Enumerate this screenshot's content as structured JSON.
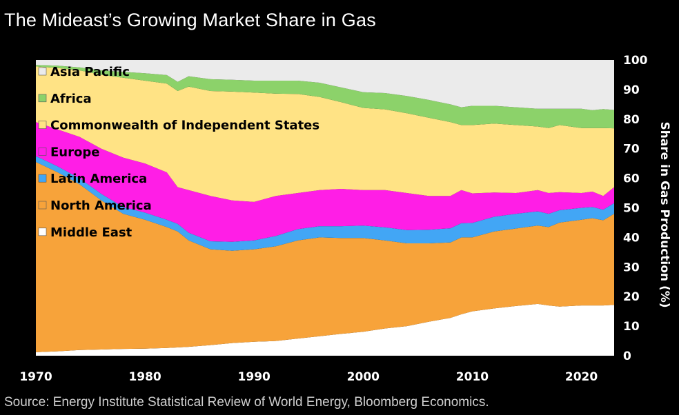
{
  "chart_data": {
    "type": "area",
    "stacked": true,
    "title": "The Mideast’s Growing Market Share in Gas",
    "source": "Source: Energy Institute Statistical Review of World Energy, Bloomberg Economics.",
    "xlabel": "",
    "ylabel": "Share in Gas Production (%)",
    "xlim": [
      1970,
      2023
    ],
    "ylim": [
      0,
      100
    ],
    "x_ticks": [
      1970,
      1980,
      1990,
      2000,
      2010,
      2020
    ],
    "y_ticks": [
      0,
      10,
      20,
      30,
      40,
      50,
      60,
      70,
      80,
      90,
      100
    ],
    "legend_placement": "top-left",
    "x": [
      1970,
      1972,
      1974,
      1976,
      1978,
      1980,
      1982,
      1983,
      1984,
      1986,
      1988,
      1990,
      1992,
      1994,
      1996,
      1998,
      2000,
      2002,
      2004,
      2006,
      2008,
      2009,
      2010,
      2012,
      2014,
      2016,
      2017,
      2018,
      2020,
      2021,
      2022,
      2023
    ],
    "series": [
      {
        "name": "Middle East",
        "color": "#ffffff",
        "values": [
          1.2,
          1.5,
          1.9,
          2.1,
          2.3,
          2.4,
          2.6,
          2.8,
          3.0,
          3.6,
          4.3,
          4.7,
          5.0,
          5.8,
          6.6,
          7.4,
          8.1,
          9.2,
          10.0,
          11.5,
          12.8,
          14.0,
          15.0,
          16.0,
          16.8,
          17.5,
          17.0,
          16.6,
          17.0,
          17.0,
          17.0,
          17.2
        ]
      },
      {
        "name": "North America",
        "color": "#f7a33a",
        "values": [
          64.3,
          60.5,
          56.1,
          50.4,
          45.7,
          43.6,
          40.9,
          39.2,
          36.0,
          32.4,
          31.2,
          31.3,
          32.0,
          33.2,
          33.4,
          32.4,
          31.7,
          29.8,
          28.0,
          26.5,
          25.5,
          26.0,
          25.0,
          26.0,
          26.2,
          26.5,
          26.5,
          28.4,
          29.0,
          29.5,
          28.8,
          30.8
        ]
      },
      {
        "name": "Latin America",
        "color": "#42a6f5",
        "values": [
          2.0,
          2.0,
          2.0,
          2.2,
          2.3,
          2.4,
          2.5,
          2.6,
          2.6,
          2.7,
          3.0,
          3.0,
          3.5,
          3.8,
          3.8,
          4.0,
          4.2,
          4.4,
          4.5,
          4.6,
          4.8,
          4.8,
          4.9,
          5.0,
          5.0,
          4.8,
          4.5,
          4.2,
          4.0,
          3.8,
          3.6,
          3.6
        ]
      },
      {
        "name": "Europe",
        "color": "#ff1ee6",
        "values": [
          11.5,
          12.5,
          14.0,
          15.3,
          16.7,
          16.6,
          16.0,
          12.4,
          14.4,
          15.3,
          14.0,
          13.0,
          13.5,
          12.2,
          12.2,
          12.6,
          12.0,
          12.6,
          12.5,
          11.4,
          10.9,
          11.2,
          10.0,
          8.2,
          7.0,
          7.2,
          7.0,
          6.1,
          5.0,
          5.2,
          4.6,
          5.4
        ]
      },
      {
        "name": "Commonwealth of Independent States",
        "color": "#ffe385",
        "values": [
          18.8,
          20.8,
          22.5,
          25.0,
          27.0,
          28.0,
          30.0,
          32.5,
          35.0,
          35.5,
          36.8,
          37.0,
          34.6,
          33.5,
          31.5,
          29.3,
          27.8,
          27.3,
          27.0,
          26.5,
          25.0,
          22.0,
          23.1,
          23.3,
          23.0,
          21.5,
          22.0,
          22.7,
          22.0,
          21.5,
          23.0,
          19.9
        ]
      },
      {
        "name": "Africa",
        "color": "#8cd26a",
        "values": [
          0.5,
          0.8,
          1.0,
          1.5,
          2.0,
          2.5,
          2.9,
          3.1,
          3.5,
          4.0,
          4.0,
          4.0,
          4.4,
          4.5,
          4.8,
          5.0,
          5.3,
          5.5,
          5.8,
          6.0,
          6.0,
          6.0,
          6.5,
          6.0,
          6.0,
          6.0,
          6.5,
          5.5,
          6.5,
          6.0,
          6.4,
          6.2
        ]
      },
      {
        "name": "Asia Pacific",
        "color": "#ebebeb",
        "values": [
          1.7,
          1.9,
          2.5,
          3.5,
          4.0,
          4.5,
          5.1,
          7.4,
          5.5,
          6.5,
          6.7,
          7.0,
          7.0,
          7.0,
          7.7,
          9.3,
          10.9,
          11.2,
          12.2,
          13.5,
          15.0,
          16.0,
          15.5,
          15.5,
          16.0,
          16.5,
          16.5,
          16.5,
          16.5,
          17.0,
          16.6,
          16.9
        ]
      }
    ]
  }
}
